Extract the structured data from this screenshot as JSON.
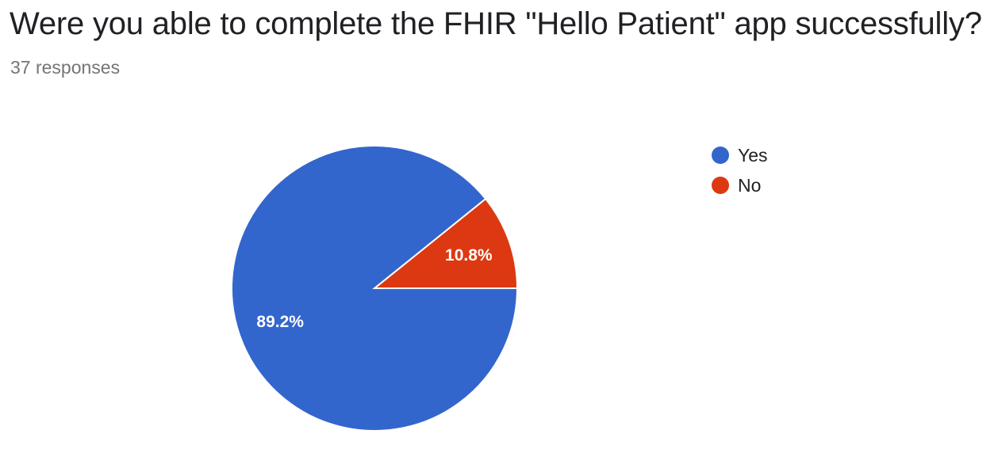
{
  "header": {
    "question": "Were you able to complete the FHIR \"Hello Patient\" app successfully?",
    "responses": "37 responses"
  },
  "chart_data": {
    "type": "pie",
    "categories": [
      "Yes",
      "No"
    ],
    "values": [
      89.2,
      10.8
    ],
    "slice_labels": [
      "89.2%",
      "10.8%"
    ],
    "colors": [
      "#3366cc",
      "#dc3912"
    ],
    "legend": {
      "entries": [
        "Yes",
        "No"
      ],
      "placement": "right"
    }
  }
}
